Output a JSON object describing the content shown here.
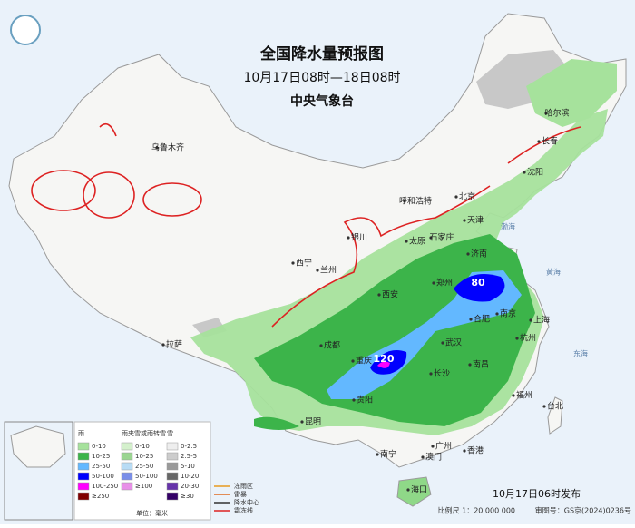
{
  "header": {
    "title": "全国降水量预报图",
    "period": "10月17日08时—18日08时",
    "agency": "中央气象台"
  },
  "cities": [
    "乌鲁木齐",
    "哈尔滨",
    "长春",
    "沈阳",
    "呼和浩特",
    "北京",
    "天津",
    "石家庄",
    "太原",
    "银川",
    "济南",
    "西宁",
    "兰州",
    "郑州",
    "西安",
    "南京",
    "合肥",
    "上海",
    "成都",
    "武汉",
    "杭州",
    "拉萨",
    "重庆",
    "长沙",
    "南昌",
    "贵阳",
    "福州",
    "台北",
    "昆明",
    "南宁",
    "广州",
    "香港",
    "澳门",
    "海口"
  ],
  "seas": [
    "渤海",
    "黄海",
    "东海"
  ],
  "centers": [
    "80",
    "120"
  ],
  "legend": {
    "rain": {
      "title": "雨",
      "items": [
        "0-10",
        "10-25",
        "25-50",
        "50-100",
        "100-250",
        "≥250"
      ]
    },
    "sleet": {
      "title": "雨夹雪或雨转雪",
      "items": [
        "0-10",
        "10-25",
        "25-50",
        "50-100",
        "≥100"
      ]
    },
    "snow": {
      "title": "雪",
      "items": [
        "0-2.5",
        "2.5-5",
        "5-10",
        "10-20",
        "20-30",
        "≥30"
      ]
    },
    "unit": "单位：毫米",
    "symbols": [
      "冻雨区",
      "雷暴",
      "降水中心",
      "霜冻线"
    ]
  },
  "footer": {
    "issued": "10月17日06时发布",
    "scale": "比例尺 1：20 000 000",
    "approval": "审图号：GS京(2024)0236号"
  }
}
